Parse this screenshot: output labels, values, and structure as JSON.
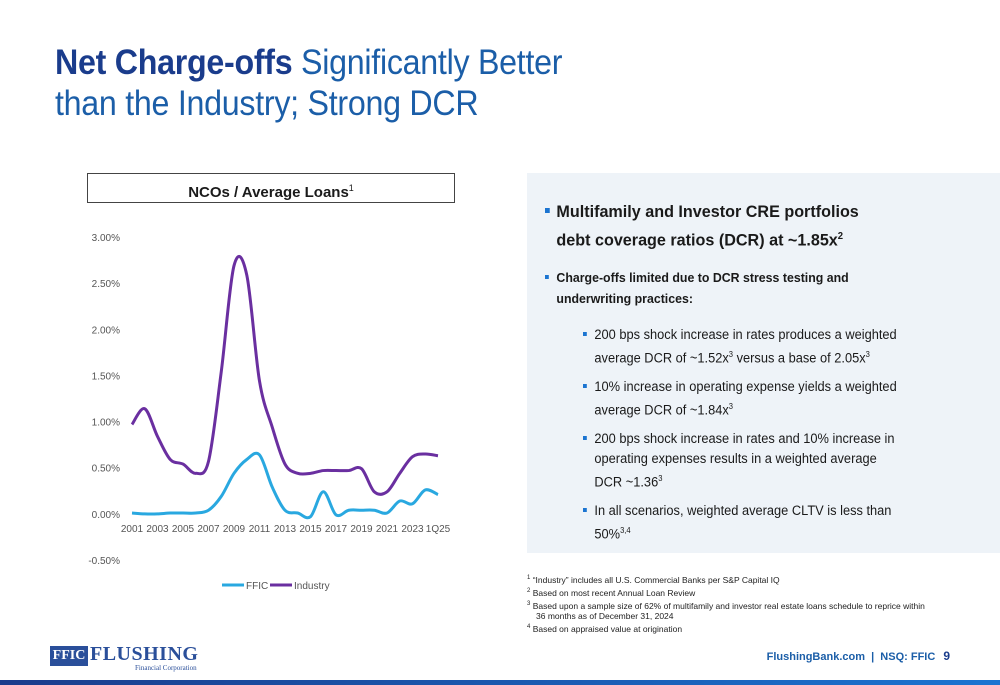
{
  "title": {
    "bold": "Net Charge-offs",
    "rest1": " Significantly Better",
    "line2": "than the Industry; Strong DCR"
  },
  "chart_title": {
    "text": "NCOs / Average Loans",
    "sup": "1"
  },
  "chart_data": {
    "type": "line",
    "x": [
      "2001",
      "2002",
      "2003",
      "2004",
      "2005",
      "2006",
      "2007",
      "2008",
      "2009",
      "2010",
      "2011",
      "2012",
      "2013",
      "2014",
      "2015",
      "2016",
      "2017",
      "2018",
      "2019",
      "2020",
      "2021",
      "2022",
      "2023",
      "2024",
      "1Q25"
    ],
    "tick_labels": [
      "2001",
      "2003",
      "2005",
      "2007",
      "2009",
      "2011",
      "2013",
      "2015",
      "2017",
      "2019",
      "2021",
      "2023",
      "1Q25"
    ],
    "y_ticks": [
      "3.00%",
      "2.50%",
      "2.00%",
      "1.50%",
      "1.00%",
      "0.50%",
      "0.00%",
      "-0.50%"
    ],
    "ylim": [
      -0.5,
      3.0
    ],
    "series": [
      {
        "name": "FFIC",
        "color": "#29a8e0",
        "values": [
          0.02,
          0.01,
          0.01,
          0.02,
          0.02,
          0.02,
          0.05,
          0.2,
          0.45,
          0.6,
          0.65,
          0.3,
          0.05,
          0.02,
          -0.02,
          0.25,
          0.0,
          0.05,
          0.05,
          0.05,
          0.02,
          0.15,
          0.12,
          0.27,
          0.22
        ]
      },
      {
        "name": "Industry",
        "color": "#6a2fa0",
        "values": [
          0.98,
          1.15,
          0.85,
          0.6,
          0.55,
          0.45,
          0.58,
          1.55,
          2.7,
          2.6,
          1.45,
          0.95,
          0.55,
          0.45,
          0.45,
          0.48,
          0.48,
          0.48,
          0.5,
          0.25,
          0.25,
          0.45,
          0.63,
          0.66,
          0.64
        ]
      }
    ],
    "legend_position": "bottom",
    "grid": false
  },
  "panel": {
    "bullet1": "Multifamily and Investor CRE portfolios debt coverage ratios (DCR) at ~1.85x",
    "bullet1_sup": "2",
    "bullet2": "Charge-offs limited due to DCR stress testing and underwriting practices:",
    "sub1a": "200 bps shock increase in rates produces a weighted average DCR of ~1.52x",
    "sub1b": " versus a base of 2.05x",
    "sub1_sup": "3",
    "sub2": "10% increase in operating expense yields a weighted average DCR of ~1.84x",
    "sub2_sup": "3",
    "sub3": "200 bps shock increase in rates and 10% increase in operating expenses results in a weighted average DCR ~1.36",
    "sub3_sup": "3",
    "sub4": "In all scenarios, weighted average CLTV is less than 50%",
    "sub4_sup": "3,4"
  },
  "footnotes": {
    "f1": "“Industry” includes all U.S. Commercial Banks per S&P Capital IQ",
    "f2": "Based on most recent Annual Loan Review",
    "f3": "Based upon a sample size of 62% of multifamily and investor real estate loans schedule to reprice within",
    "f3b": "36 months as of December 31, 2024",
    "f4": "Based on appraised value at origination"
  },
  "logo": {
    "ffic": "FFIC",
    "name": "FLUSHING",
    "sub": "Financial Corporation"
  },
  "footer": {
    "text": "FlushingBank.com  |  NSQ: FFIC",
    "page": "9"
  }
}
